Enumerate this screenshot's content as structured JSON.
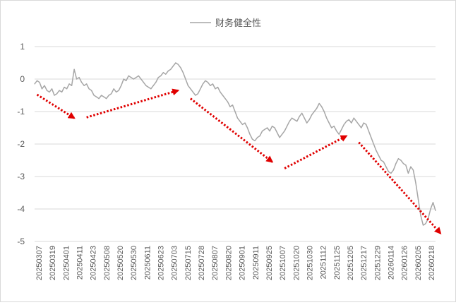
{
  "chart_data": {
    "type": "line",
    "title": "",
    "xlabel": "",
    "ylabel": "",
    "ylim": [
      -5,
      1
    ],
    "yticks": [
      1,
      0,
      -1,
      -2,
      -3,
      -4,
      -5
    ],
    "grid": true,
    "legend_position": "top",
    "x_tick_labels": [
      "20250307",
      "20250319",
      "20250401",
      "20250411",
      "20250423",
      "20250508",
      "20250520",
      "20250530",
      "20250611",
      "20250623",
      "20250703",
      "20250715",
      "20250728",
      "20250807",
      "20250820",
      "20250901",
      "20250911",
      "20250925",
      "20251007",
      "20251020",
      "20251030",
      "20251112",
      "20251125",
      "20251205",
      "20251217",
      "20251229",
      "20260114",
      "20260126",
      "20260205",
      "20260218"
    ],
    "series": [
      {
        "name": "财务健全性",
        "color": "#a6a6a6",
        "values": [
          -0.15,
          -0.05,
          -0.1,
          -0.3,
          -0.2,
          -0.35,
          -0.4,
          -0.3,
          -0.5,
          -0.45,
          -0.35,
          -0.4,
          -0.25,
          -0.3,
          -0.15,
          -0.2,
          0.3,
          0.0,
          0.05,
          -0.1,
          -0.2,
          -0.15,
          -0.3,
          -0.35,
          -0.5,
          -0.55,
          -0.6,
          -0.5,
          -0.55,
          -0.6,
          -0.5,
          -0.45,
          -0.3,
          -0.4,
          -0.35,
          -0.2,
          0.0,
          -0.05,
          0.1,
          0.05,
          0.0,
          0.05,
          0.1,
          0.0,
          -0.1,
          -0.2,
          -0.25,
          -0.3,
          -0.2,
          -0.1,
          0.05,
          0.1,
          0.2,
          0.15,
          0.25,
          0.3,
          0.4,
          0.5,
          0.45,
          0.35,
          0.2,
          0.0,
          -0.2,
          -0.3,
          -0.4,
          -0.5,
          -0.45,
          -0.3,
          -0.15,
          -0.05,
          -0.1,
          -0.2,
          -0.15,
          -0.3,
          -0.25,
          -0.4,
          -0.5,
          -0.6,
          -0.7,
          -0.85,
          -0.8,
          -1.0,
          -1.2,
          -1.3,
          -1.4,
          -1.35,
          -1.5,
          -1.7,
          -1.85,
          -1.9,
          -1.8,
          -1.75,
          -1.6,
          -1.55,
          -1.5,
          -1.6,
          -1.45,
          -1.5,
          -1.65,
          -1.8,
          -1.7,
          -1.6,
          -1.45,
          -1.3,
          -1.2,
          -1.25,
          -1.3,
          -1.15,
          -1.05,
          -1.2,
          -1.35,
          -1.25,
          -1.1,
          -1.0,
          -0.9,
          -0.75,
          -0.85,
          -1.0,
          -1.2,
          -1.35,
          -1.5,
          -1.45,
          -1.6,
          -1.7,
          -1.55,
          -1.4,
          -1.3,
          -1.25,
          -1.35,
          -1.2,
          -1.3,
          -1.4,
          -1.5,
          -1.35,
          -1.4,
          -1.6,
          -1.8,
          -2.0,
          -2.2,
          -2.35,
          -2.5,
          -2.55,
          -2.7,
          -2.85,
          -2.9,
          -2.8,
          -2.6,
          -2.45,
          -2.5,
          -2.6,
          -2.65,
          -2.9,
          -2.7,
          -2.8,
          -3.2,
          -3.7,
          -4.2,
          -4.5,
          -4.45,
          -4.3,
          -4.0,
          -3.8,
          -4.05
        ]
      }
    ],
    "annotations": [
      {
        "type": "arrow",
        "style": "dotted",
        "color": "#e00000",
        "from": [
          1,
          -0.48
        ],
        "to": [
          16,
          -1.2
        ]
      },
      {
        "type": "arrow",
        "style": "dotted",
        "color": "#e00000",
        "from": [
          21,
          -1.18
        ],
        "to": [
          58,
          -0.35
        ]
      },
      {
        "type": "arrow",
        "style": "dotted",
        "color": "#e00000",
        "from": [
          63,
          -0.6
        ],
        "to": [
          96,
          -2.55
        ]
      },
      {
        "type": "arrow",
        "style": "dotted",
        "color": "#e00000",
        "from": [
          101,
          -2.75
        ],
        "to": [
          126,
          -1.75
        ]
      },
      {
        "type": "arrow",
        "style": "dotted",
        "color": "#e00000",
        "from": [
          131,
          -1.95
        ],
        "to": [
          164,
          -4.75
        ]
      }
    ]
  }
}
